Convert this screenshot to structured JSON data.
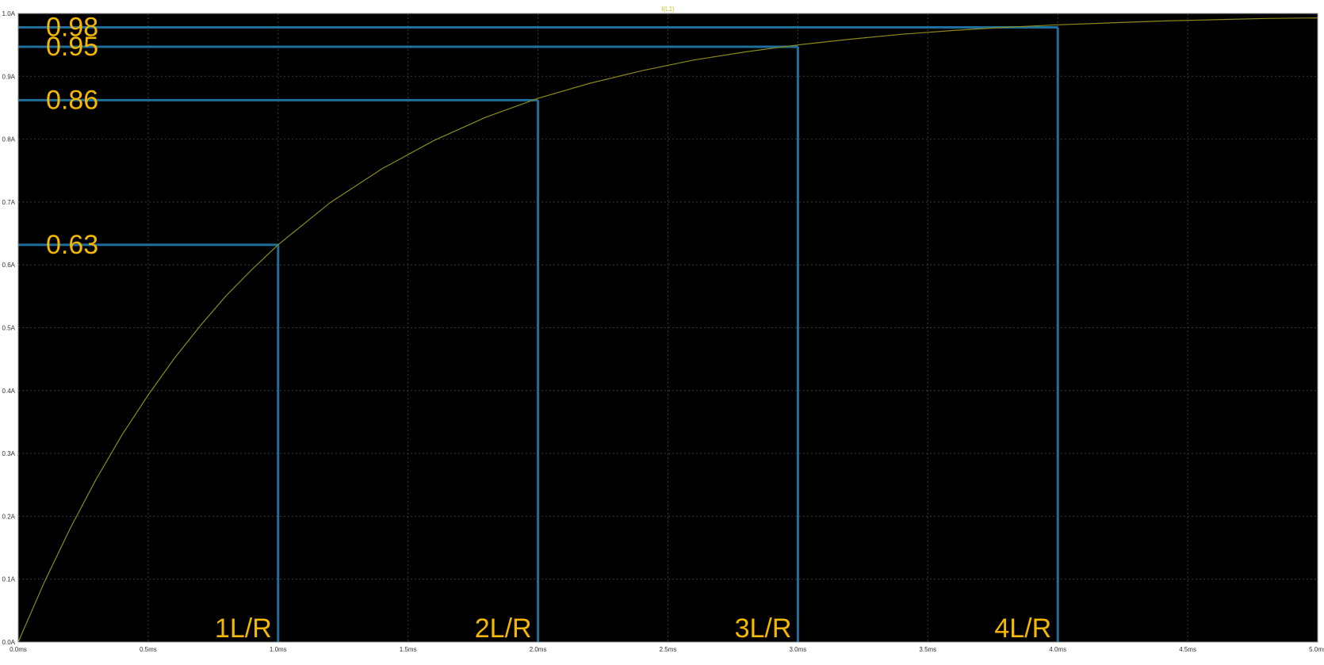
{
  "chart_data": {
    "type": "line",
    "title": "I(L1)",
    "xlabel": "",
    "ylabel": "",
    "xlim": [
      0,
      5.0
    ],
    "ylim": [
      0,
      1.0
    ],
    "x_ticks": [
      "0.0ms",
      "0.5ms",
      "1.0ms",
      "1.5ms",
      "2.0ms",
      "2.5ms",
      "3.0ms",
      "3.5ms",
      "4.0ms",
      "4.5ms",
      "5.0ms"
    ],
    "y_ticks": [
      "0.0A",
      "0.1A",
      "0.2A",
      "0.3A",
      "0.4A",
      "0.5A",
      "0.6A",
      "0.7A",
      "0.8A",
      "0.9A",
      "1.0A"
    ],
    "grid": true,
    "series": [
      {
        "name": "I(L1)",
        "color": "#8a8a1f",
        "x": [
          0.0,
          0.1,
          0.2,
          0.3,
          0.4,
          0.5,
          0.6,
          0.7,
          0.8,
          0.9,
          1.0,
          1.2,
          1.4,
          1.6,
          1.8,
          2.0,
          2.2,
          2.4,
          2.6,
          2.8,
          3.0,
          3.2,
          3.4,
          3.6,
          3.8,
          4.0,
          4.2,
          4.4,
          4.6,
          4.8,
          5.0
        ],
        "y": [
          0.0,
          0.095,
          0.181,
          0.259,
          0.33,
          0.393,
          0.451,
          0.503,
          0.551,
          0.593,
          0.632,
          0.699,
          0.753,
          0.798,
          0.835,
          0.865,
          0.889,
          0.909,
          0.926,
          0.939,
          0.95,
          0.959,
          0.967,
          0.973,
          0.978,
          0.982,
          0.985,
          0.988,
          0.99,
          0.992,
          0.993
        ]
      }
    ],
    "markers": [
      {
        "x": 1.0,
        "y": 0.632,
        "value_label": "0.63",
        "time_label": "1L/R"
      },
      {
        "x": 2.0,
        "y": 0.862,
        "value_label": "0.86",
        "time_label": "2L/R"
      },
      {
        "x": 3.0,
        "y": 0.947,
        "value_label": "0.95",
        "time_label": "3L/R"
      },
      {
        "x": 4.0,
        "y": 0.978,
        "value_label": "0.98",
        "time_label": "4L/R"
      }
    ],
    "colors": {
      "background": "#000000",
      "frame": "#ffffff",
      "grid": "#3a3a3a",
      "tick_text": "#c8c8c8",
      "title_text": "#c8c81e",
      "marker_line": "#1f6f9a",
      "annotation_text": "#f5b800"
    }
  }
}
